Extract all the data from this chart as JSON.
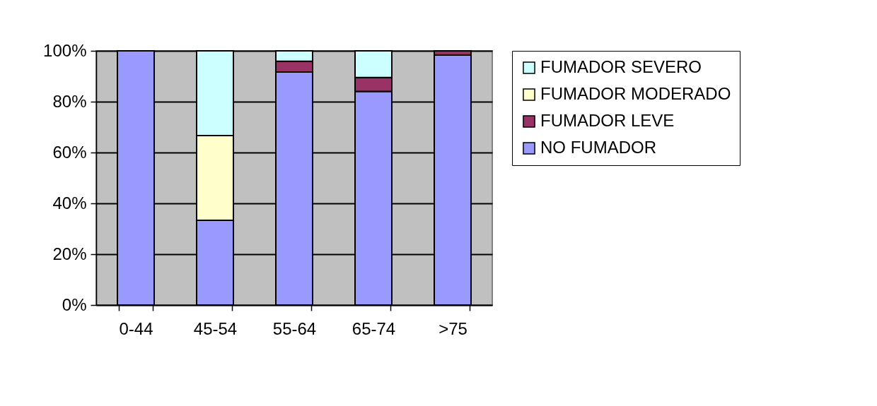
{
  "chart_data": {
    "type": "bar",
    "stacked": true,
    "categories": [
      "0-44",
      "45-54",
      "55-64",
      "65-74",
      ">75"
    ],
    "series": [
      {
        "name": "NO FUMADOR",
        "color": "#9999ff",
        "values": [
          100,
          33.3,
          91.7,
          84,
          98.3
        ]
      },
      {
        "name": "FUMADOR LEVE",
        "color": "#993366",
        "values": [
          0,
          0,
          4.2,
          5.5,
          1.7
        ]
      },
      {
        "name": "FUMADOR MODERADO",
        "color": "#ffffcc",
        "values": [
          0,
          33.4,
          0,
          0,
          0
        ]
      },
      {
        "name": "FUMADOR SEVERO",
        "color": "#ccffff",
        "values": [
          0,
          33.3,
          4.1,
          10.5,
          0
        ]
      }
    ],
    "ylim": [
      0,
      100
    ],
    "yticks": [
      {
        "value": 0,
        "label": "0%"
      },
      {
        "value": 20,
        "label": "20%"
      },
      {
        "value": 40,
        "label": "40%"
      },
      {
        "value": 60,
        "label": "60%"
      },
      {
        "value": 80,
        "label": "80%"
      },
      {
        "value": 100,
        "label": "100%"
      }
    ],
    "grid": "y",
    "legend": "right"
  }
}
